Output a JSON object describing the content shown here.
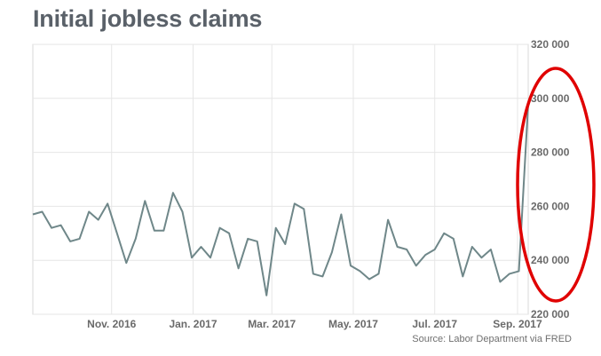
{
  "chart_data": {
    "type": "line",
    "title": "Initial jobless claims",
    "source": "Source: Labor Department via FRED",
    "ylim": [
      220000,
      320000
    ],
    "xlim": [
      "2016-09-03",
      "2017-09-09"
    ],
    "yticks": [
      220000,
      240000,
      260000,
      280000,
      300000,
      320000
    ],
    "ytick_labels": [
      "220 000",
      "240 000",
      "260 000",
      "280 000",
      "300 000",
      "320 000"
    ],
    "xticks": [
      {
        "label": "Nov. 2016",
        "date": "2016-11-01"
      },
      {
        "label": "Jan. 2017",
        "date": "2017-01-01"
      },
      {
        "label": "Mar. 2017",
        "date": "2017-03-01"
      },
      {
        "label": "May. 2017",
        "date": "2017-05-01"
      },
      {
        "label": "Jul. 2017",
        "date": "2017-07-01"
      },
      {
        "label": "Sep. 2017",
        "date": "2017-09-01"
      }
    ],
    "grid": true,
    "annotation": "red ellipse highlighting final spike",
    "colors": {
      "line": "#6f8789",
      "highlight": "#e00000",
      "grid": "#e6e6e6"
    },
    "series": [
      {
        "x": [
          "2016-09-03",
          "2016-09-10",
          "2016-09-17",
          "2016-09-24",
          "2016-10-01",
          "2016-10-08",
          "2016-10-15",
          "2016-10-22",
          "2016-10-29",
          "2016-11-05",
          "2016-11-12",
          "2016-11-19",
          "2016-11-26",
          "2016-12-03",
          "2016-12-10",
          "2016-12-17",
          "2016-12-24",
          "2016-12-31",
          "2017-01-07",
          "2017-01-14",
          "2017-01-21",
          "2017-01-28",
          "2017-02-04",
          "2017-02-11",
          "2017-02-18",
          "2017-02-25",
          "2017-03-04",
          "2017-03-11",
          "2017-03-18",
          "2017-03-25",
          "2017-04-01",
          "2017-04-08",
          "2017-04-15",
          "2017-04-22",
          "2017-04-29",
          "2017-05-06",
          "2017-05-13",
          "2017-05-20",
          "2017-05-27",
          "2017-06-03",
          "2017-06-10",
          "2017-06-17",
          "2017-06-24",
          "2017-07-01",
          "2017-07-08",
          "2017-07-15",
          "2017-07-22",
          "2017-07-29",
          "2017-08-05",
          "2017-08-12",
          "2017-08-19",
          "2017-08-26",
          "2017-09-02",
          "2017-09-09"
        ],
        "values": [
          257000,
          258000,
          252000,
          253000,
          247000,
          248000,
          258000,
          255000,
          261000,
          250000,
          239000,
          248000,
          262000,
          251000,
          251000,
          265000,
          258000,
          241000,
          245000,
          241000,
          252000,
          250000,
          237000,
          248000,
          247000,
          227000,
          252000,
          246000,
          261000,
          259000,
          235000,
          234000,
          243000,
          257000,
          238000,
          236000,
          233000,
          235000,
          255000,
          245000,
          244000,
          238000,
          242000,
          244000,
          250000,
          248000,
          234000,
          245000,
          241000,
          244000,
          232000,
          235000,
          236000,
          298000
        ]
      }
    ]
  }
}
